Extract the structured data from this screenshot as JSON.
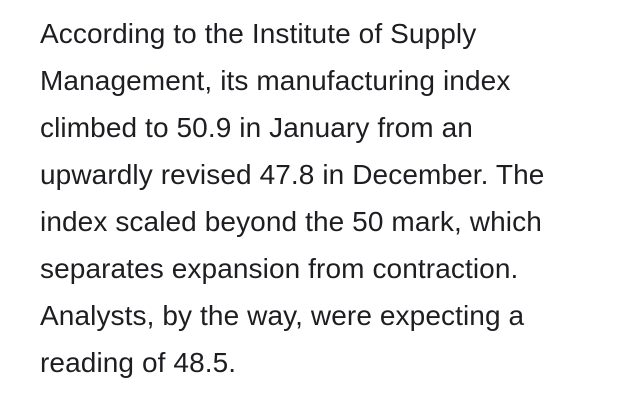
{
  "paragraph": {
    "lines": [
      "According to the Institute of Supply",
      "Management, its manufacturing index",
      "climbed to 50.9 in January from an",
      "upwardly revised 47.8 in December. The",
      "index scaled beyond the 50 mark, which",
      "separates expansion from contraction.",
      "Analysts, by the way, were expecting a",
      "reading of 48.5."
    ]
  }
}
